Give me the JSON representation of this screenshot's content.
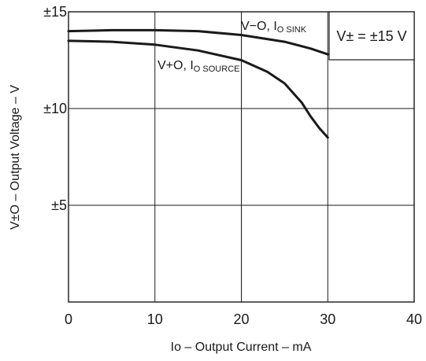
{
  "chart_data": {
    "type": "line",
    "xlabel": "Io – Output Current – mA",
    "ylabel": "V±O – Output Voltage – V",
    "xlim": [
      0,
      40
    ],
    "ylim": [
      0,
      15
    ],
    "xticks": [
      {
        "value": 0,
        "label": "0"
      },
      {
        "value": 10,
        "label": "10"
      },
      {
        "value": 20,
        "label": "20"
      },
      {
        "value": 30,
        "label": "30"
      },
      {
        "value": 40,
        "label": "40"
      }
    ],
    "yticks": [
      {
        "value": 5,
        "label": "±5"
      },
      {
        "value": 10,
        "label": "±10"
      },
      {
        "value": 15,
        "label": "±15"
      }
    ],
    "grid": true,
    "annotation": "V± = ±15 V",
    "series": [
      {
        "name": "V−O, IO SINK",
        "label_main": "V−O, I",
        "label_sub": "O SINK",
        "x": [
          0,
          5,
          10,
          15,
          20,
          25,
          28,
          30
        ],
        "y": [
          14.0,
          14.05,
          14.05,
          14.0,
          13.8,
          13.45,
          13.1,
          12.8
        ]
      },
      {
        "name": "V+O, IO SOURCE",
        "label_main": "V+O, I",
        "label_sub": "O SOURCE",
        "x": [
          0,
          5,
          10,
          15,
          20,
          23,
          25,
          27,
          28,
          29,
          30
        ],
        "y": [
          13.5,
          13.45,
          13.3,
          13.0,
          12.5,
          11.9,
          11.3,
          10.3,
          9.6,
          9.0,
          8.5
        ]
      }
    ]
  }
}
